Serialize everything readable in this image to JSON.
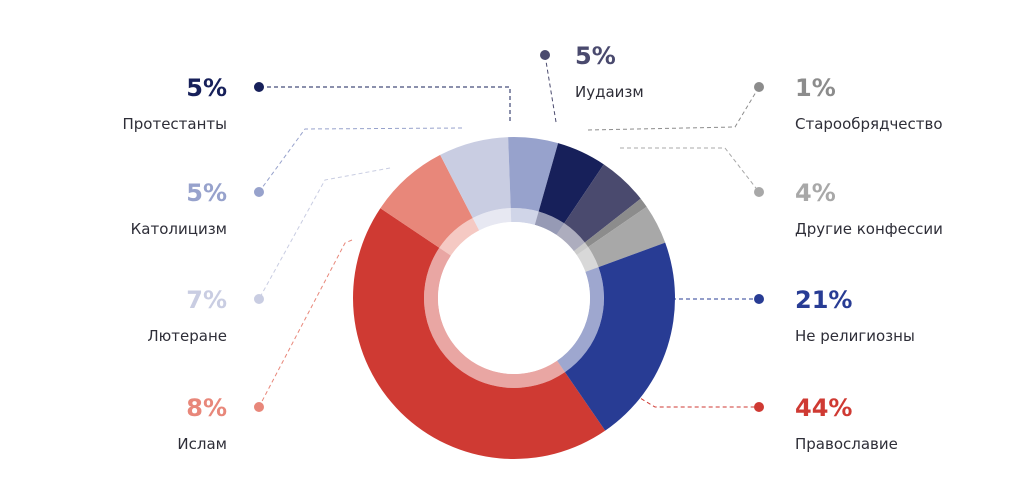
{
  "chart_data": {
    "type": "pie",
    "variant": "donut",
    "slices": [
      {
        "label": "Православие",
        "percent_text": "44%",
        "value": 44,
        "color": "#cf3a33"
      },
      {
        "label": "Ислам",
        "percent_text": "8%",
        "value": 8,
        "color": "#e8877a"
      },
      {
        "label": "Лютеране",
        "percent_text": "7%",
        "value": 7,
        "color": "#c9cde2"
      },
      {
        "label": "Католицизм",
        "percent_text": "5%",
        "value": 5,
        "color": "#97a2cc"
      },
      {
        "label": "Протестанты",
        "percent_text": "5%",
        "value": 5,
        "color": "#17205a"
      },
      {
        "label": "Иудаизм",
        "percent_text": "5%",
        "value": 5,
        "color": "#4a4a6e"
      },
      {
        "label": "Старообрядчество",
        "percent_text": "1%",
        "value": 1,
        "color": "#8c8c8c"
      },
      {
        "label": "Другие конфессии",
        "percent_text": "4%",
        "value": 4,
        "color": "#a8a8a8"
      },
      {
        "label": "Не религиозны",
        "percent_text": "21%",
        "value": 21,
        "color": "#283c94"
      }
    ]
  }
}
